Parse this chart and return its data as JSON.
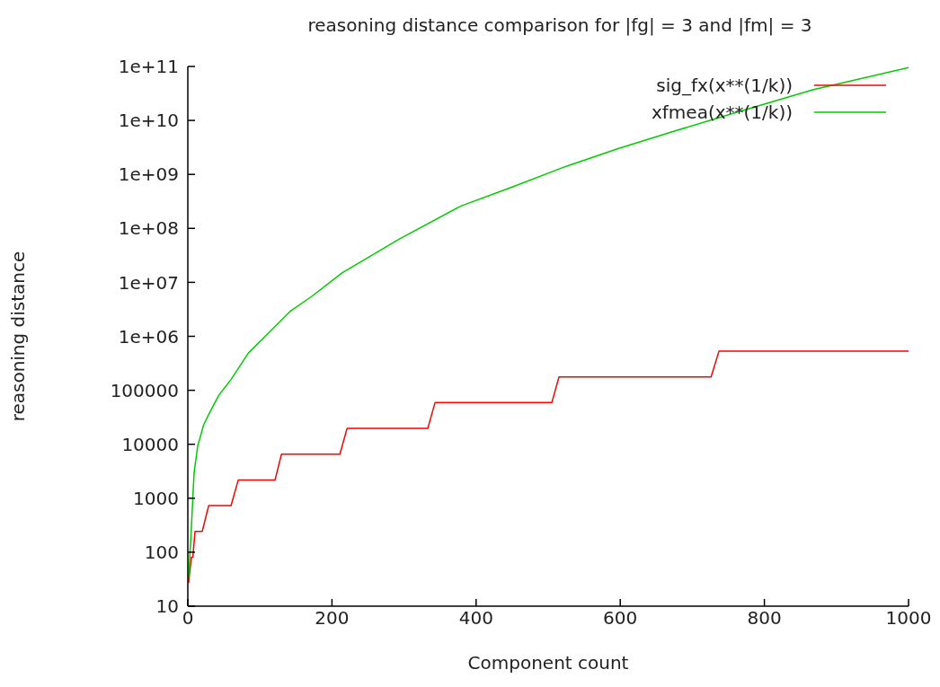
{
  "chart_data": {
    "type": "line",
    "title": "reasoning distance comparison for |fg| = 3 and |fm| = 3",
    "xlabel": "Component count",
    "ylabel": "reasoning distance",
    "log": "y",
    "xlim": [
      0,
      1000
    ],
    "xticks": [
      0,
      200,
      400,
      600,
      800,
      1000
    ],
    "ylim": [
      10,
      100000000000
    ],
    "yticks": [
      10,
      100,
      1000,
      10000,
      100000,
      {
        "value": 1000000,
        "label": "1e+06"
      },
      {
        "value": 10000000,
        "label": "1e+07"
      },
      {
        "value": 100000000,
        "label": "1e+08"
      },
      {
        "value": 1000000000,
        "label": "1e+09"
      },
      {
        "value": 10000000000,
        "label": "1e+10"
      },
      {
        "value": 100000000000,
        "label": "1e+11"
      }
    ],
    "legend": "top right",
    "marker": "none",
    "line_style": "solid",
    "series": [
      {
        "name": "sig_fx(x**(1/k))",
        "color": "#ff0000",
        "x": [
          1,
          5,
          7,
          10,
          20,
          29,
          60,
          70,
          121,
          130,
          211,
          221,
          333,
          343,
          505,
          515,
          726,
          737,
          1000
        ],
        "values": [
          27,
          81,
          81,
          243,
          243,
          729,
          729,
          2187,
          2187,
          6561,
          6561,
          19683,
          19683,
          59049,
          59049,
          177147,
          177147,
          531441,
          531441
        ]
      },
      {
        "name": "xfmea(x**(1/k))",
        "color": "#00cc00",
        "x": [
          1,
          4.6,
          6.2,
          8.7,
          13.7,
          22,
          30,
          43,
          59.5,
          84,
          109,
          142,
          172,
          214,
          293,
          379,
          451,
          524,
          597,
          669,
          768,
          867,
          1000
        ],
        "values": [
          34,
          230,
          630,
          2950,
          9300,
          23000,
          38000,
          81000,
          155000,
          490000,
          1050000,
          2900000,
          5500000,
          15000000,
          63000000,
          260000000,
          590000000,
          1400000000,
          3000000000,
          6000000000,
          15000000000,
          37000000000,
          95000000000
        ]
      }
    ]
  }
}
